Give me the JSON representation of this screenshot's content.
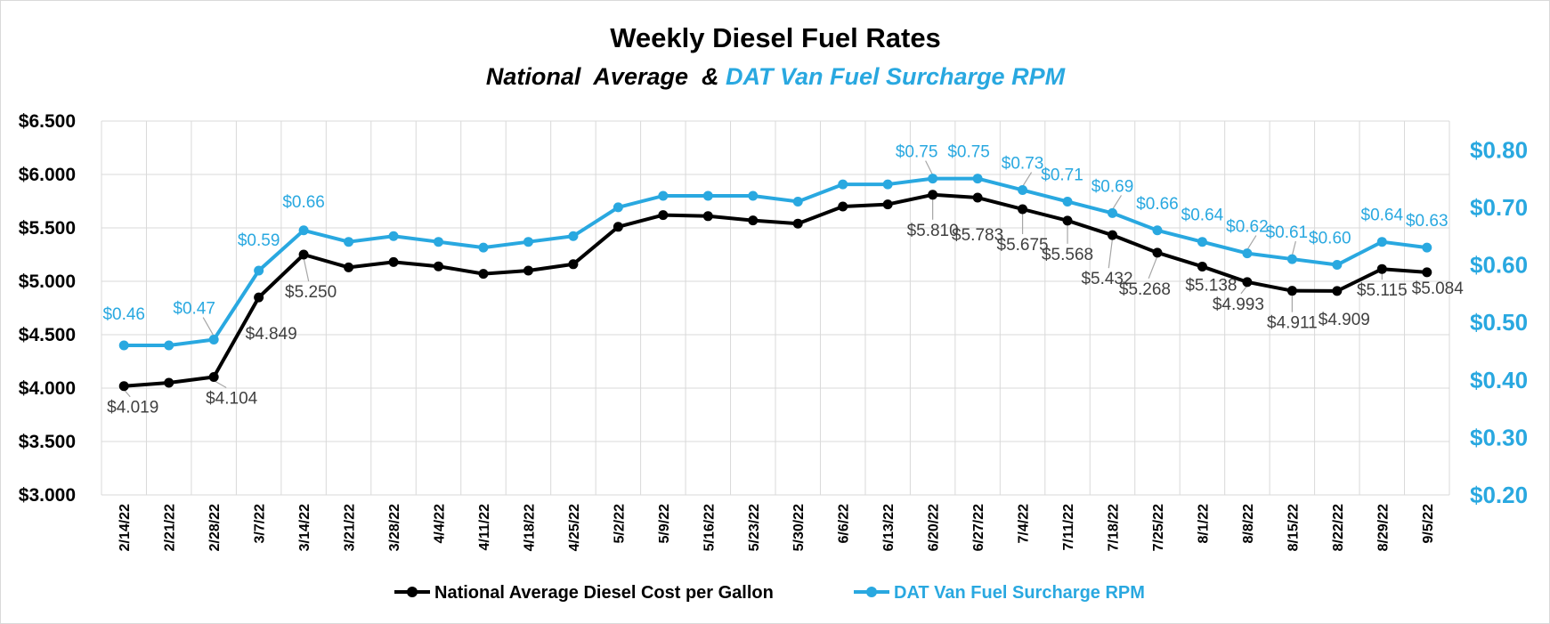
{
  "colors": {
    "national": "#000000",
    "dat": "#29a8e0",
    "grid": "#d9d9d9",
    "label_text": "#404040",
    "leader": "#a6a6a6"
  },
  "chart_data": {
    "type": "line",
    "title": "Weekly Diesel Fuel Rates",
    "subtitle_part1": "National  Average  &",
    "subtitle_part2": "DAT Van Fuel Surcharge RPM",
    "categories": [
      "2/14/22",
      "2/21/22",
      "2/28/22",
      "3/7/22",
      "3/14/22",
      "3/21/22",
      "3/28/22",
      "4/4/22",
      "4/11/22",
      "4/18/22",
      "4/25/22",
      "5/2/22",
      "5/9/22",
      "5/16/22",
      "5/23/22",
      "5/30/22",
      "6/6/22",
      "6/13/22",
      "6/20/22",
      "6/27/22",
      "7/4/22",
      "7/11/22",
      "7/18/22",
      "7/25/22",
      "8/1/22",
      "8/8/22",
      "8/15/22",
      "8/22/22",
      "8/29/22",
      "9/5/22"
    ],
    "y_left": {
      "min": 3.0,
      "max": 6.5,
      "step": 0.5,
      "tick_labels": [
        "$3.000",
        "$3.500",
        "$4.000",
        "$4.500",
        "$5.000",
        "$5.500",
        "$6.000",
        "$6.500"
      ]
    },
    "y_right": {
      "min": 0.2,
      "max": 0.85,
      "tick_values": [
        0.2,
        0.3,
        0.4,
        0.5,
        0.6,
        0.7,
        0.8
      ],
      "tick_labels": [
        "$0.20",
        "$0.30",
        "$0.40",
        "$0.50",
        "$0.60",
        "$0.70",
        "$0.80"
      ]
    },
    "grid": true,
    "legend_position": "bottom",
    "series": [
      {
        "name": "National Average Diesel Cost per Gallon",
        "axis": "left",
        "values": [
          4.019,
          4.05,
          4.104,
          4.849,
          5.25,
          5.13,
          5.18,
          5.14,
          5.07,
          5.1,
          5.16,
          5.51,
          5.62,
          5.61,
          5.57,
          5.54,
          5.7,
          5.72,
          5.81,
          5.783,
          5.675,
          5.568,
          5.432,
          5.268,
          5.138,
          4.993,
          4.911,
          4.909,
          5.115,
          5.084
        ],
        "labels": [
          "$4.019",
          "",
          "$4.104",
          "$4.849",
          "$5.250",
          "",
          "",
          "",
          "",
          "",
          "",
          "",
          "",
          "",
          "",
          "",
          "",
          "",
          "$5.810",
          "$5.783",
          "$5.675",
          "$5.568",
          "$5.432",
          "$5.268",
          "$5.138",
          "$4.993",
          "$4.911",
          "$4.909",
          "$5.115",
          "$5.084"
        ]
      },
      {
        "name": "DAT Van Fuel Surcharge RPM",
        "axis": "right",
        "values": [
          0.46,
          0.46,
          0.47,
          0.59,
          0.66,
          0.64,
          0.65,
          0.64,
          0.63,
          0.64,
          0.65,
          0.7,
          0.72,
          0.72,
          0.72,
          0.71,
          0.74,
          0.74,
          0.75,
          0.75,
          0.73,
          0.71,
          0.69,
          0.66,
          0.64,
          0.62,
          0.61,
          0.6,
          0.64,
          0.63
        ],
        "labels": [
          "$0.46",
          "",
          "$0.47",
          "$0.59",
          "$0.66",
          "",
          "",
          "",
          "",
          "",
          "",
          "",
          "",
          "",
          "",
          "",
          "",
          "",
          "$0.75",
          "$0.75",
          "$0.73",
          "$0.71",
          "$0.69",
          "$0.66",
          "$0.64",
          "$0.62",
          "$0.61",
          "$0.60",
          "$0.64",
          "$0.63"
        ]
      }
    ]
  }
}
